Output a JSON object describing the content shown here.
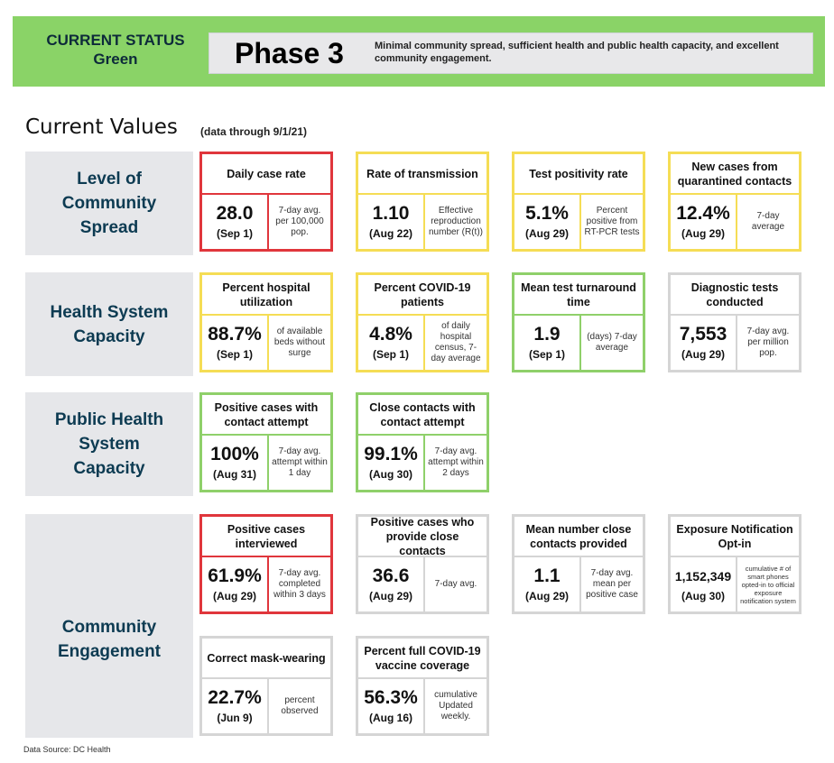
{
  "status": {
    "label_line1": "CURRENT STATUS",
    "label_line2": "Green",
    "phase": "Phase 3",
    "description": "Minimal community spread, sufficient health and public health capacity, and excellent community engagement.",
    "color": "#8ad367"
  },
  "section": {
    "title": "Current Values",
    "data_through": "(data through 9/1/21)"
  },
  "rows": [
    {
      "line1": "Level of",
      "line2": "Community",
      "line3": "Spread"
    },
    {
      "line1": "Health System",
      "line2": "Capacity"
    },
    {
      "line1": "Public Health",
      "line2": "System",
      "line3": "Capacity"
    },
    {
      "line1": "Community",
      "line2": "Engagement"
    }
  ],
  "cards": [
    {
      "title": "Daily case rate",
      "value": "28.0",
      "date": "(Sep 1)",
      "note": "7-day avg. per 100,000 pop.",
      "status": "red"
    },
    {
      "title": "Rate of transmission",
      "value": "1.10",
      "date": "(Aug 22)",
      "note": "Effective reproduction number (R(t))",
      "status": "yellow"
    },
    {
      "title": "Test positivity rate",
      "value": "5.1%",
      "date": "(Aug 29)",
      "note": "Percent positive from RT-PCR tests",
      "status": "yellow"
    },
    {
      "title": "New cases from quarantined contacts",
      "value": "12.4%",
      "date": "(Aug 29)",
      "note": "7-day average",
      "status": "yellow"
    },
    {
      "title": "Percent hospital utilization",
      "value": "88.7%",
      "date": "(Sep 1)",
      "note": "of available beds without surge",
      "status": "yellow"
    },
    {
      "title": "Percent COVID-19 patients",
      "value": "4.8%",
      "date": "(Sep 1)",
      "note": "of daily hospital census, 7-day average",
      "status": "yellow"
    },
    {
      "title": "Mean test turnaround time",
      "value": "1.9",
      "date": "(Sep 1)",
      "note": "(days) 7-day average",
      "status": "green"
    },
    {
      "title": "Diagnostic tests conducted",
      "value": "7,553",
      "date": "(Aug 29)",
      "note": "7-day avg. per million pop.",
      "status": "gray"
    },
    {
      "title": "Positive cases with contact attempt",
      "value": "100%",
      "date": "(Aug 31)",
      "note": "7-day avg. attempt within 1 day",
      "status": "green"
    },
    {
      "title": "Close contacts with contact attempt",
      "value": "99.1%",
      "date": "(Aug 30)",
      "note": "7-day avg. attempt within 2 days",
      "status": "green"
    },
    {
      "title": "Positive cases interviewed",
      "value": "61.9%",
      "date": "(Aug 29)",
      "note": "7-day avg. completed within 3 days",
      "status": "red"
    },
    {
      "title": "Positive cases who provide close contacts",
      "value": "36.6",
      "date": "(Aug 29)",
      "note": "7-day avg.",
      "status": "gray"
    },
    {
      "title": "Mean number close contacts provided",
      "value": "1.1",
      "date": "(Aug 29)",
      "note": "7-day avg. mean per positive case",
      "status": "gray"
    },
    {
      "title": "Exposure Notification Opt-in",
      "value": "1,152,349",
      "date": "(Aug 30)",
      "note": "cumulative # of smart phones opted-in to official exposure notification system",
      "status": "gray"
    },
    {
      "title": "Correct mask-wearing",
      "value": "22.7%",
      "date": "(Jun 9)",
      "note": "percent observed",
      "status": "gray"
    },
    {
      "title": "Percent full COVID-19 vaccine coverage",
      "value": "56.3%",
      "date": "(Aug 16)",
      "note": "cumulative Updated weekly.",
      "status": "gray"
    }
  ],
  "footer": {
    "source": "Data Source: DC Health"
  }
}
